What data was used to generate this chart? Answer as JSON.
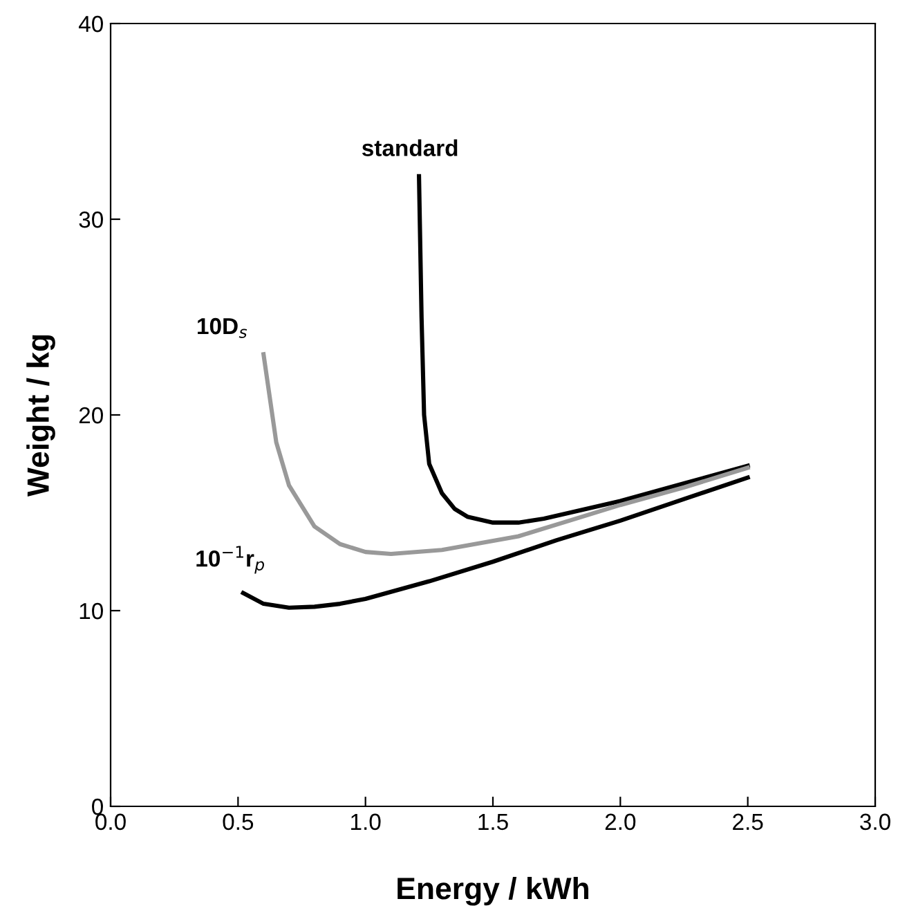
{
  "chart_data": {
    "type": "line",
    "xlabel": "Energy / kWh",
    "ylabel": "Weight / kg",
    "xlim": [
      0.0,
      3.0
    ],
    "xticks": [
      {
        "value": 0,
        "label": "0.0"
      },
      {
        "value": 0.5,
        "label": "0.5"
      },
      {
        "value": 1,
        "label": "1.0"
      },
      {
        "value": 1.5,
        "label": "1.5"
      },
      {
        "value": 2,
        "label": "2.0"
      },
      {
        "value": 2.5,
        "label": "2.5"
      },
      {
        "value": 3,
        "label": "3.0"
      }
    ],
    "ylim": [
      0,
      40
    ],
    "yticks": [
      0,
      10,
      20,
      30,
      40
    ],
    "grid": false,
    "legend": false,
    "marker": "none",
    "line_style": "solid",
    "series": [
      {
        "name": "standard",
        "color": "#000000",
        "x": [
          1.21,
          1.22,
          1.23,
          1.25,
          1.3,
          1.35,
          1.4,
          1.5,
          1.6,
          1.7,
          1.8,
          2.0,
          2.25,
          2.5
        ],
        "values": [
          32.2,
          25,
          20,
          17.5,
          16.0,
          15.2,
          14.8,
          14.5,
          14.5,
          14.7,
          15.0,
          15.6,
          16.5,
          17.4
        ]
      },
      {
        "name": "10D$_{s}$",
        "color": "#999999",
        "x": [
          0.6,
          0.65,
          0.7,
          0.8,
          0.9,
          1.0,
          1.1,
          1.3,
          1.6,
          1.8,
          2.0,
          2.25,
          2.5
        ],
        "values": [
          23.1,
          18.6,
          16.4,
          14.3,
          13.4,
          13.0,
          12.9,
          13.1,
          13.8,
          14.6,
          15.4,
          16.3,
          17.3
        ]
      },
      {
        "name": "10$^{−1}$r$_{p}$",
        "color": "#000000",
        "x": [
          0.52,
          0.6,
          0.7,
          0.8,
          0.9,
          1.0,
          1.25,
          1.5,
          1.75,
          2.0,
          2.25,
          2.5
        ],
        "values": [
          10.9,
          10.35,
          10.15,
          10.2,
          10.35,
          10.6,
          11.5,
          12.5,
          13.6,
          14.6,
          15.7,
          16.8
        ]
      }
    ]
  }
}
